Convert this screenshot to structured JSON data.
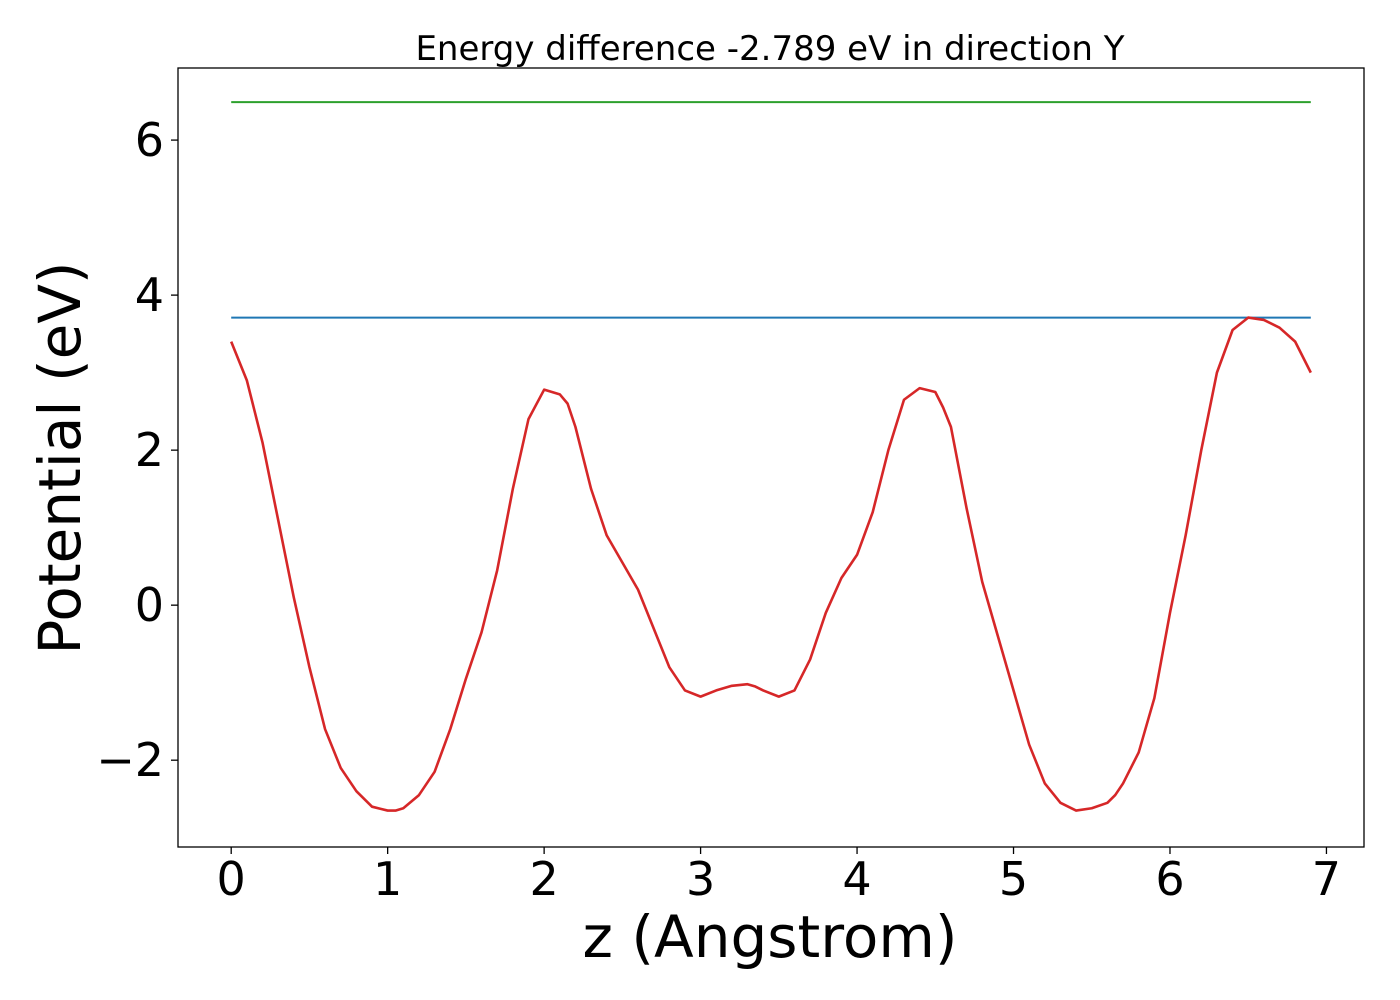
{
  "chart_data": {
    "type": "line",
    "title": "Energy difference -2.789 eV in direction Y",
    "xlabel": "z (Angstrom)",
    "ylabel": "Potential (eV)",
    "xlim": [
      -0.34,
      7.24
    ],
    "ylim": [
      -3.12,
      6.93
    ],
    "xticks": [
      0,
      1,
      2,
      3,
      4,
      5,
      6,
      7
    ],
    "xtick_labels": [
      "0",
      "1",
      "2",
      "3",
      "4",
      "5",
      "6",
      "7"
    ],
    "yticks": [
      -2,
      0,
      2,
      4,
      6
    ],
    "ytick_labels": [
      "−2",
      "0",
      "2",
      "4",
      "6"
    ],
    "grid": false,
    "series": [
      {
        "color": "#2ca02c",
        "x": [
          0,
          6.9
        ],
        "y": [
          6.49,
          6.49
        ]
      },
      {
        "color": "#1f77b4",
        "x": [
          0,
          6.9
        ],
        "y": [
          3.71,
          3.71
        ]
      },
      {
        "color": "#d62728",
        "x": [
          0,
          0.1,
          0.2,
          0.3,
          0.4,
          0.5,
          0.6,
          0.7,
          0.8,
          0.9,
          1.0,
          1.05,
          1.1,
          1.2,
          1.3,
          1.4,
          1.5,
          1.6,
          1.7,
          1.8,
          1.9,
          2.0,
          2.1,
          2.15,
          2.2,
          2.3,
          2.4,
          2.5,
          2.6,
          2.7,
          2.8,
          2.9,
          3.0,
          3.1,
          3.2,
          3.3,
          3.35,
          3.4,
          3.5,
          3.6,
          3.7,
          3.8,
          3.9,
          4.0,
          4.1,
          4.2,
          4.3,
          4.4,
          4.5,
          4.55,
          4.6,
          4.7,
          4.8,
          4.9,
          5.0,
          5.1,
          5.2,
          5.3,
          5.4,
          5.5,
          5.6,
          5.65,
          5.7,
          5.8,
          5.9,
          6.0,
          6.1,
          6.2,
          6.3,
          6.4,
          6.5,
          6.6,
          6.7,
          6.8,
          6.85,
          6.9
        ],
        "y": [
          3.4,
          2.9,
          2.1,
          1.1,
          0.1,
          -0.8,
          -1.6,
          -2.1,
          -2.4,
          -2.6,
          -2.65,
          -2.65,
          -2.62,
          -2.45,
          -2.15,
          -1.6,
          -0.95,
          -0.35,
          0.45,
          1.5,
          2.4,
          2.78,
          2.72,
          2.6,
          2.3,
          1.5,
          0.9,
          0.55,
          0.2,
          -0.3,
          -0.8,
          -1.1,
          -1.18,
          -1.1,
          -1.04,
          -1.02,
          -1.05,
          -1.1,
          -1.18,
          -1.1,
          -0.7,
          -0.1,
          0.35,
          0.65,
          1.2,
          2.0,
          2.65,
          2.8,
          2.75,
          2.55,
          2.3,
          1.25,
          0.3,
          -0.4,
          -1.1,
          -1.8,
          -2.3,
          -2.55,
          -2.65,
          -2.62,
          -2.55,
          -2.45,
          -2.3,
          -1.9,
          -1.2,
          -0.1,
          0.9,
          2.0,
          3.0,
          3.55,
          3.71,
          3.68,
          3.58,
          3.4,
          3.2,
          3.0
        ]
      }
    ]
  }
}
